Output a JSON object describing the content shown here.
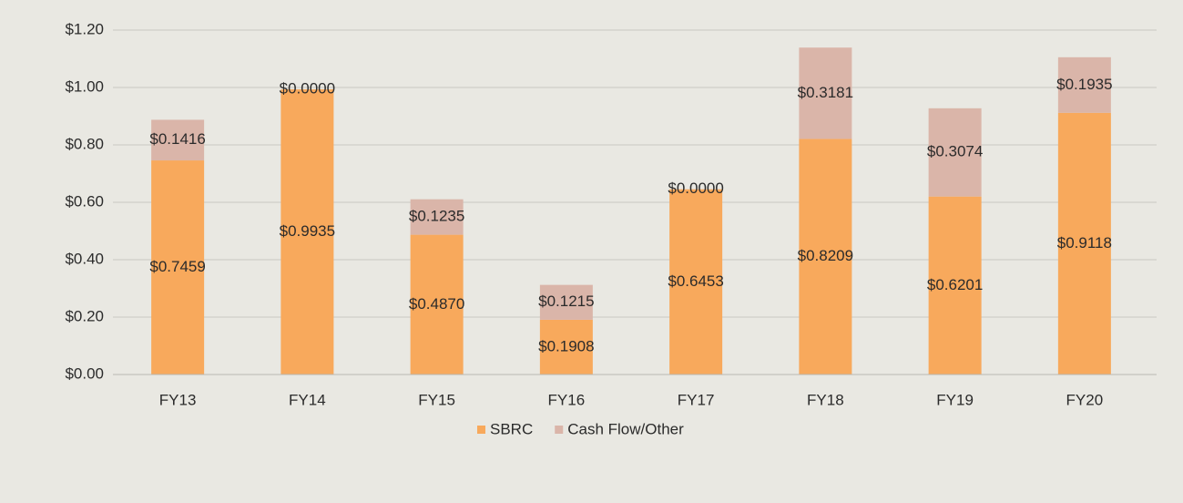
{
  "chart_data": {
    "type": "stacked_bar",
    "categories": [
      "FY13",
      "FY14",
      "FY15",
      "FY16",
      "FY17",
      "FY18",
      "FY19",
      "FY20"
    ],
    "series": [
      {
        "name": "SBRC",
        "color": "#f8a95c",
        "values": [
          0.7459,
          0.9935,
          0.487,
          0.1908,
          0.6453,
          0.8209,
          0.6201,
          0.9118
        ],
        "value_labels": [
          "$0.7459",
          "$0.9935",
          "$0.4870",
          "$0.1908",
          "$0.6453",
          "$0.8209",
          "$0.6201",
          "$0.9118"
        ]
      },
      {
        "name": "Cash Flow/Other",
        "color": "#dab5a9",
        "values": [
          0.1416,
          0.0,
          0.1235,
          0.1215,
          0.0,
          0.3181,
          0.3074,
          0.1935
        ],
        "value_labels": [
          "$0.1416",
          "$0.0000",
          "$0.1235",
          "$0.1215",
          "$0.0000",
          "$0.3181",
          "$0.3074",
          "$0.1935"
        ]
      }
    ],
    "ylim": [
      0,
      1.2
    ],
    "yticks": [
      {
        "value": 0,
        "label": "$0.00"
      },
      {
        "value": 0.2,
        "label": "$0.20"
      },
      {
        "value": 0.4,
        "label": "$0.40"
      },
      {
        "value": 0.6,
        "label": "$0.60"
      },
      {
        "value": 0.8,
        "label": "$0.80"
      },
      {
        "value": 1.0,
        "label": "$1.00"
      },
      {
        "value": 1.2,
        "label": "$1.20"
      }
    ],
    "grid": true,
    "legend": "bottom"
  }
}
